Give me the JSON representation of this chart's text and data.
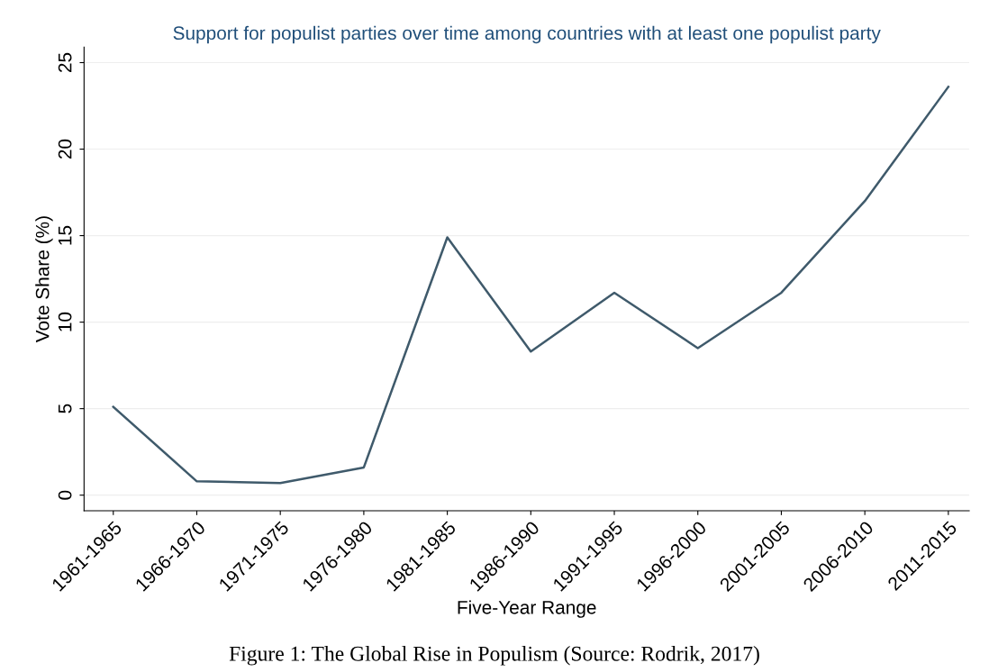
{
  "chart_data": {
    "type": "line",
    "title": "Support for populist parties over time among countries with at least one populist party",
    "xlabel": "Five-Year Range",
    "ylabel": "Vote Share (%)",
    "categories": [
      "1961-1965",
      "1966-1970",
      "1971-1975",
      "1976-1980",
      "1981-1985",
      "1986-1990",
      "1991-1995",
      "1996-2000",
      "2001-2005",
      "2006-2010",
      "2011-2015"
    ],
    "series": [
      {
        "color": "#3f5a6b",
        "values": [
          5.1,
          0.8,
          0.7,
          1.6,
          14.9,
          8.3,
          11.7,
          8.5,
          11.7,
          17.0,
          23.6
        ]
      }
    ],
    "ylim": [
      -0.9,
      25.9
    ],
    "yticks": [
      0,
      5,
      10,
      15,
      20,
      25
    ],
    "grid": "y",
    "marker": "none",
    "line_style": "solid",
    "annotations": [
      "Figure 1: The Global Rise in Populism (Source: Rodrik, 2017)"
    ]
  }
}
